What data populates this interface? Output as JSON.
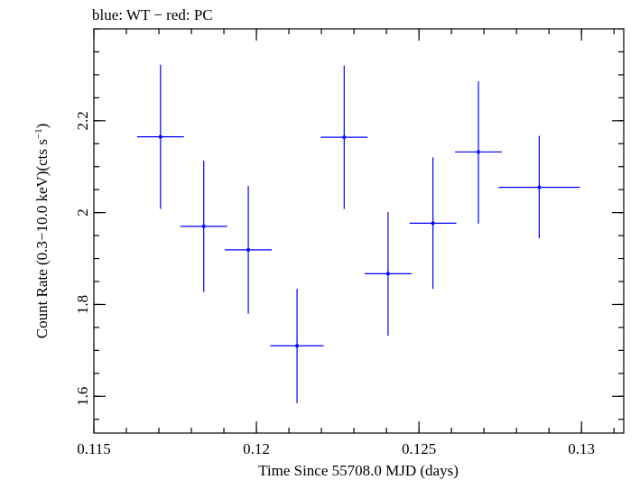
{
  "chart_data": {
    "type": "scatter",
    "title": "blue: WT − red: PC",
    "xlabel": "Time Since 55708.0 MJD (days)",
    "ylabel_main": "Count Rate (0.3−10.0 keV)(cts s",
    "ylabel_sup": "−1",
    "ylabel_close": ")",
    "xlim": [
      0.115,
      0.1313
    ],
    "ylim": [
      1.52,
      2.4
    ],
    "xticks": [
      {
        "value": 0.115,
        "label": "0.115"
      },
      {
        "value": 0.12,
        "label": "0.12"
      },
      {
        "value": 0.125,
        "label": "0.125"
      },
      {
        "value": 0.13,
        "label": "0.13"
      }
    ],
    "xminor_step": 0.001,
    "yticks": [
      {
        "value": 1.6,
        "label": "1.6"
      },
      {
        "value": 1.8,
        "label": "1.8"
      },
      {
        "value": 2.0,
        "label": "2"
      },
      {
        "value": 2.2,
        "label": "2.2"
      }
    ],
    "yminor_step": 0.05,
    "series": [
      {
        "color": "#0000ff",
        "points": [
          {
            "x": 0.11705,
            "xerr": 0.00072,
            "y": 2.165,
            "ylo": 2.008,
            "yhi": 2.322
          },
          {
            "x": 0.11838,
            "xerr": 0.00072,
            "y": 1.97,
            "ylo": 1.827,
            "yhi": 2.113
          },
          {
            "x": 0.11975,
            "xerr": 0.00072,
            "y": 1.919,
            "ylo": 1.78,
            "yhi": 2.058
          },
          {
            "x": 0.12125,
            "xerr": 0.00082,
            "y": 1.71,
            "ylo": 1.585,
            "yhi": 1.834
          },
          {
            "x": 0.1227,
            "xerr": 0.00072,
            "y": 2.164,
            "ylo": 2.008,
            "yhi": 2.32
          },
          {
            "x": 0.12405,
            "xerr": 0.00072,
            "y": 1.867,
            "ylo": 1.732,
            "yhi": 2.001
          },
          {
            "x": 0.12543,
            "xerr": 0.00072,
            "y": 1.977,
            "ylo": 1.834,
            "yhi": 2.12
          },
          {
            "x": 0.12683,
            "xerr": 0.00072,
            "y": 2.132,
            "ylo": 1.976,
            "yhi": 2.286
          },
          {
            "x": 0.1287,
            "xerr": 0.00125,
            "y": 2.055,
            "ylo": 1.944,
            "yhi": 2.167
          }
        ]
      }
    ]
  }
}
